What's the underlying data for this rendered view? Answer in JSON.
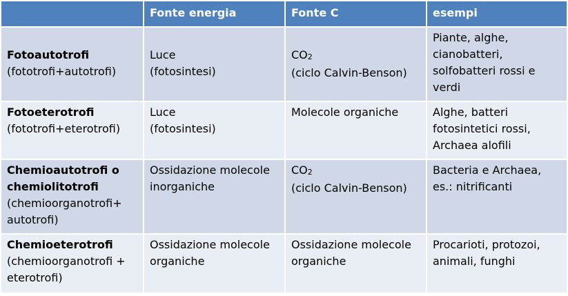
{
  "headers": [
    "",
    "Fonte energia",
    "Fonte C",
    "esempi"
  ],
  "rows": [
    {
      "name": "Fotoautotrofi",
      "sub": "(fototrofi+autotrofi)",
      "energy": [
        "Luce",
        "(fotosintesi)"
      ],
      "carbon_main": "CO",
      "carbon_sub": "2",
      "carbon_extra": "(ciclo Calvin-Benson)",
      "examples": "Piante, alghe, cianobatteri, solfobatteri rossi e verdi"
    },
    {
      "name": "Fotoeterotrofi",
      "sub": "(fototrofi+eterotrofi)",
      "energy": [
        "Luce",
        "(fotosintesi)"
      ],
      "carbon_main": "Molecole organiche",
      "examples": "Alghe, batteri fotosintetici rossi, Archaea alofili"
    },
    {
      "name": "Chemioautotrofi o chemiolitotrofi",
      "sub": "(chemioorganotrofi+ autotrofi)",
      "energy": [
        "Ossidazione molecole inorganiche"
      ],
      "carbon_main": "CO",
      "carbon_sub": "2",
      "carbon_extra": "(ciclo Calvin-Benson)",
      "examples": "Bacteria e Archaea, es.: nitrificanti"
    },
    {
      "name": "Chemioeterotrofi",
      "sub": "(chemioorganotrofi + eterotrofi)",
      "energy": [
        "Ossidazione molecole organiche"
      ],
      "carbon_main": "Ossidazione molecole organiche",
      "examples": "Procarioti, protozoi, animali, funghi"
    }
  ]
}
